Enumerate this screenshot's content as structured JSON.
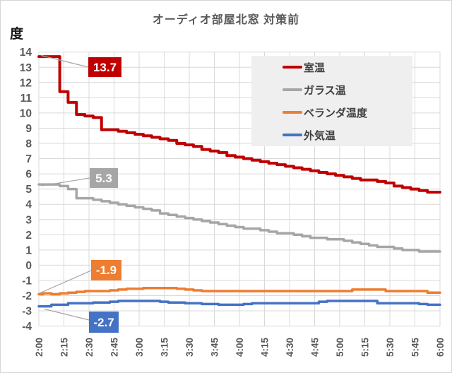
{
  "chart_data": {
    "type": "line",
    "title": "オーディオ部屋北窓 対策前",
    "y_unit": "度",
    "ylim": [
      -4,
      14
    ],
    "y_ticks": [
      14,
      13,
      12,
      11,
      10,
      9,
      8,
      7,
      6,
      5,
      4,
      3,
      2,
      1,
      0,
      -1,
      -2,
      -3,
      -4
    ],
    "x_ticks": [
      "2:00",
      "2:15",
      "2:30",
      "2:45",
      "3:00",
      "3:15",
      "3:30",
      "3:45",
      "4:00",
      "4:15",
      "4:30",
      "4:45",
      "5:00",
      "5:15",
      "5:30",
      "5:45",
      "6:00"
    ],
    "x": [
      "2:00",
      "2:05",
      "2:10",
      "2:15",
      "2:20",
      "2:25",
      "2:30",
      "2:35",
      "2:40",
      "2:45",
      "2:50",
      "2:55",
      "3:00",
      "3:05",
      "3:10",
      "3:15",
      "3:20",
      "3:25",
      "3:30",
      "3:35",
      "3:40",
      "3:45",
      "3:50",
      "3:55",
      "4:00",
      "4:05",
      "4:10",
      "4:15",
      "4:20",
      "4:25",
      "4:30",
      "4:35",
      "4:40",
      "4:45",
      "4:50",
      "4:55",
      "5:00",
      "5:05",
      "5:10",
      "5:15",
      "5:20",
      "5:25",
      "5:30",
      "5:35",
      "5:40",
      "5:45",
      "5:50",
      "5:55",
      "6:00"
    ],
    "grid": true,
    "legend_position": "top-right-overlay",
    "colors": {
      "gridline": "#d9d9d9",
      "axis_text": "#595959",
      "title_text": "#595959",
      "legend_bg": "#efefef",
      "leader_line": "#a6a6a6",
      "plot_bg": "#ffffff"
    },
    "series": [
      {
        "name": "室温",
        "color": "#C00000",
        "label": "13.7",
        "values": [
          13.7,
          13.7,
          13.7,
          11.4,
          10.7,
          9.9,
          9.8,
          9.7,
          8.9,
          8.9,
          8.8,
          8.7,
          8.6,
          8.5,
          8.4,
          8.3,
          8.2,
          8.0,
          7.9,
          7.8,
          7.6,
          7.5,
          7.4,
          7.2,
          7.1,
          7.0,
          6.9,
          6.8,
          6.7,
          6.6,
          6.5,
          6.4,
          6.3,
          6.2,
          6.1,
          6.0,
          5.9,
          5.8,
          5.7,
          5.6,
          5.6,
          5.5,
          5.4,
          5.2,
          5.1,
          5.0,
          4.9,
          4.8,
          4.8
        ]
      },
      {
        "name": "ガラス温",
        "color": "#A6A6A6",
        "label": "5.3",
        "values": [
          5.3,
          5.3,
          5.3,
          5.2,
          5.0,
          4.4,
          4.4,
          4.3,
          4.2,
          4.1,
          4.0,
          3.9,
          3.8,
          3.7,
          3.6,
          3.4,
          3.3,
          3.2,
          3.1,
          3.0,
          2.9,
          2.8,
          2.7,
          2.6,
          2.5,
          2.4,
          2.4,
          2.3,
          2.2,
          2.1,
          2.1,
          2.0,
          1.9,
          1.8,
          1.8,
          1.7,
          1.7,
          1.6,
          1.5,
          1.4,
          1.3,
          1.2,
          1.2,
          1.1,
          1.0,
          1.0,
          0.9,
          0.9,
          0.9
        ]
      },
      {
        "name": "ベランダ温度",
        "color": "#ED7D31",
        "label": "-1.9",
        "values": [
          -1.9,
          -1.85,
          -1.9,
          -1.85,
          -1.8,
          -1.75,
          -1.7,
          -1.7,
          -1.7,
          -1.65,
          -1.6,
          -1.55,
          -1.55,
          -1.5,
          -1.5,
          -1.5,
          -1.5,
          -1.55,
          -1.6,
          -1.65,
          -1.7,
          -1.7,
          -1.7,
          -1.7,
          -1.7,
          -1.7,
          -1.7,
          -1.7,
          -1.7,
          -1.7,
          -1.7,
          -1.7,
          -1.7,
          -1.7,
          -1.7,
          -1.7,
          -1.7,
          -1.7,
          -1.6,
          -1.6,
          -1.6,
          -1.6,
          -1.7,
          -1.7,
          -1.7,
          -1.7,
          -1.7,
          -1.8,
          -1.8
        ]
      },
      {
        "name": "外気温",
        "color": "#4472C4",
        "label": "-2.7",
        "values": [
          -2.7,
          -2.7,
          -2.6,
          -2.6,
          -2.5,
          -2.5,
          -2.5,
          -2.45,
          -2.45,
          -2.4,
          -2.35,
          -2.35,
          -2.35,
          -2.35,
          -2.35,
          -2.4,
          -2.45,
          -2.45,
          -2.5,
          -2.5,
          -2.55,
          -2.55,
          -2.6,
          -2.6,
          -2.6,
          -2.55,
          -2.5,
          -2.5,
          -2.5,
          -2.5,
          -2.5,
          -2.5,
          -2.5,
          -2.5,
          -2.4,
          -2.35,
          -2.35,
          -2.35,
          -2.35,
          -2.35,
          -2.35,
          -2.5,
          -2.5,
          -2.5,
          -2.5,
          -2.5,
          -2.55,
          -2.6,
          -2.6
        ]
      }
    ]
  }
}
